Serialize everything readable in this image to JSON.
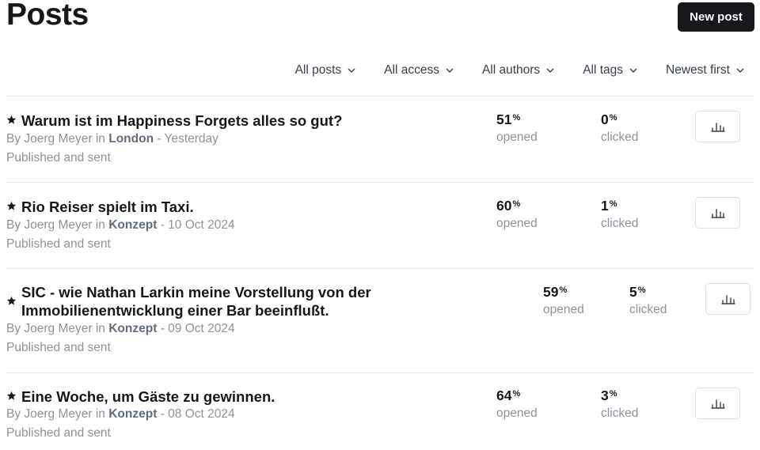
{
  "header": {
    "title": "Posts",
    "new_post_label": "New post"
  },
  "filters": [
    {
      "label": "All posts"
    },
    {
      "label": "All access"
    },
    {
      "label": "All authors"
    },
    {
      "label": "All tags"
    },
    {
      "label": "Newest first"
    }
  ],
  "posts": [
    {
      "title_line1": "Warum ist im Happiness Forgets alles so gut?",
      "title_line2": "",
      "author_prefix": "By Joerg Meyer in",
      "location": "London",
      "date": "- Yesterday",
      "status": "Published and sent",
      "opened": "51",
      "clicked": "0",
      "pct": "%",
      "opened_label": "opened",
      "clicked_label": "clicked"
    },
    {
      "title_line1": "Rio Reiser spielt im Taxi.",
      "title_line2": "",
      "author_prefix": "By Joerg Meyer in",
      "location": "Konzept",
      "date": "- 10 Oct 2024",
      "status": "Published and sent",
      "opened": "60",
      "clicked": "1",
      "pct": "%",
      "opened_label": "opened",
      "clicked_label": "clicked"
    },
    {
      "title_line1": "SIC - wie Nathan Larkin meine Vorstellung von der",
      "title_line2": "Immobilienentwicklung einer Bar beeinflußt.",
      "author_prefix": "By Joerg Meyer in",
      "location": "Konzept",
      "date": "- 09 Oct 2024",
      "status": "Published and sent",
      "opened": "59",
      "clicked": "5",
      "pct": "%",
      "opened_label": "opened",
      "clicked_label": "clicked"
    },
    {
      "title_line1": "Eine Woche, um Gäste zu gewinnen.",
      "title_line2": "",
      "author_prefix": "By Joerg Meyer in",
      "location": "Konzept",
      "date": "- 08 Oct 2024",
      "status": "Published and sent",
      "opened": "64",
      "clicked": "3",
      "pct": "%",
      "opened_label": "opened",
      "clicked_label": "clicked"
    }
  ],
  "icons": {
    "star": "star-icon",
    "chevron": "chevron-down-icon",
    "analytics": "bar-chart-icon"
  }
}
